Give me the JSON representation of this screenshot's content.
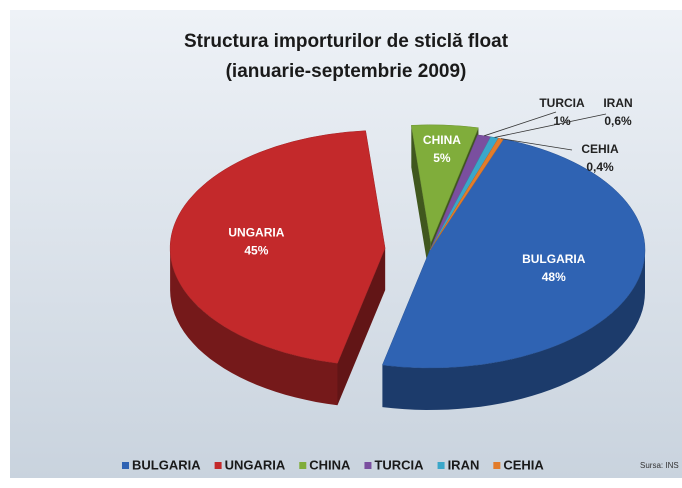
{
  "chart_data": {
    "type": "pie",
    "title": "Structura importurilor de sticlă float",
    "subtitle": "(ianuarie-septembrie 2009)",
    "categories": [
      "BULGARIA",
      "UNGARIA",
      "CHINA",
      "TURCIA",
      "IRAN",
      "CEHIA"
    ],
    "values": [
      48,
      45,
      5,
      1,
      0.6,
      0.4
    ],
    "value_labels": [
      "48%",
      "45%",
      "5%",
      "1%",
      "0,6%",
      "0,4%"
    ],
    "colors": [
      "#2f63b3",
      "#c3292b",
      "#80ad3b",
      "#7a4f9f",
      "#3ba7c9",
      "#e27c2b"
    ],
    "legend": "bottom",
    "source": "Sursa: INS"
  }
}
